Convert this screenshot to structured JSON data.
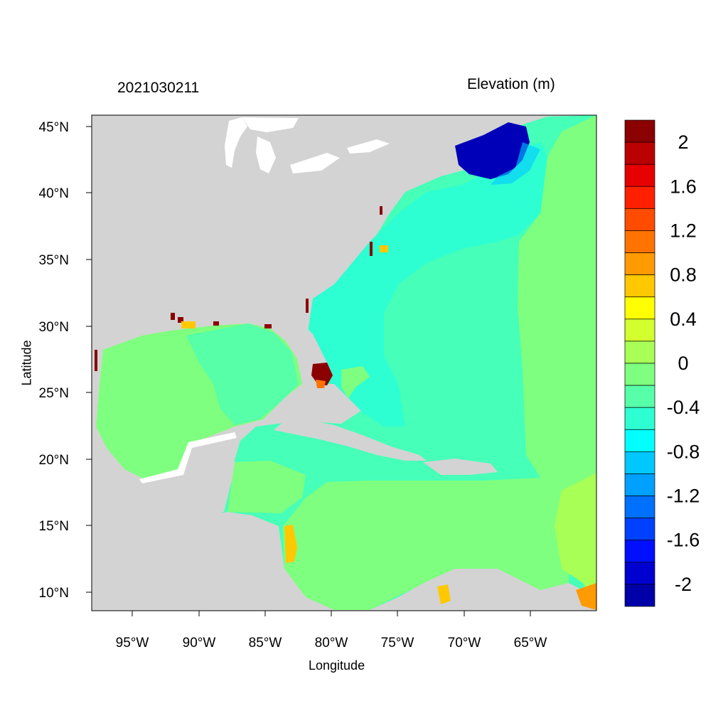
{
  "map": {
    "title_left": "2021030211",
    "title_right": "Elevation (m)",
    "x_label": "Longitude",
    "y_label": "Latitude",
    "x_ticks": [
      "95°W",
      "90°W",
      "85°W",
      "80°W",
      "75°W",
      "70°W",
      "65°W"
    ],
    "y_ticks": [
      "45°N",
      "40°N",
      "35°N",
      "30°N",
      "25°N",
      "20°N",
      "15°N",
      "10°N"
    ],
    "land_color": "#d3d3d3",
    "water_color": "#ffffff"
  },
  "colorbar": {
    "labels": [
      "2",
      "1.6",
      "1.2",
      "0.8",
      "0.4",
      "0",
      "-0.4",
      "-0.8",
      "-1.2",
      "-1.6",
      "-2"
    ],
    "colors": [
      "#8b0000",
      "#bb0000",
      "#e60000",
      "#ff2000",
      "#ff4c00",
      "#ff7300",
      "#ff9a00",
      "#ffc800",
      "#ffff00",
      "#d2ff2d",
      "#a8ff56",
      "#7fff7f",
      "#56ffa8",
      "#2dffd2",
      "#00ffff",
      "#00c8ff",
      "#00a0ff",
      "#0070ff",
      "#0040ff",
      "#0010ff",
      "#0000d0",
      "#0000a8"
    ]
  }
}
